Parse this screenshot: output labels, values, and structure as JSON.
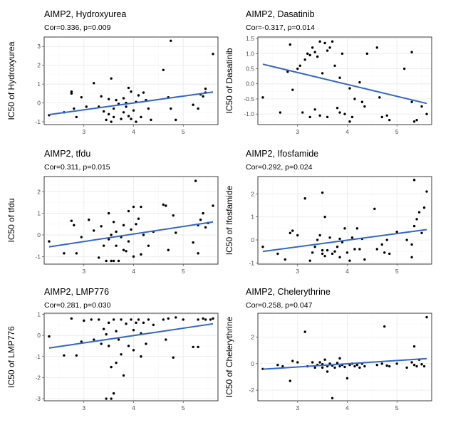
{
  "colors": {
    "fit_line": "#3366cc",
    "points": "#000000",
    "grid": "#ebebeb",
    "border": "#333333"
  },
  "chart_data": [
    {
      "type": "scatter",
      "title": "AIMP2, Hydroxyurea",
      "stat": "Cor=0.336, p=0.009",
      "ylabel": "IC50 of Hydroxyurea",
      "xlabel": "",
      "xlim": [
        2.2,
        5.7
      ],
      "ylim": [
        -1.15,
        3.5
      ],
      "xticks": [
        3,
        4,
        5
      ],
      "yticks": [
        -1,
        0,
        1,
        2,
        3
      ],
      "grid": true,
      "fit": {
        "x": [
          2.3,
          5.6
        ],
        "y": [
          -0.62,
          0.58
        ]
      },
      "points": [
        [
          2.3,
          -0.65
        ],
        [
          2.6,
          -0.5
        ],
        [
          2.75,
          0.5
        ],
        [
          2.75,
          0.6
        ],
        [
          2.8,
          -0.3
        ],
        [
          2.85,
          -0.75
        ],
        [
          2.95,
          0.3
        ],
        [
          3.05,
          -0.2
        ],
        [
          3.2,
          1.05
        ],
        [
          3.3,
          -0.2
        ],
        [
          3.35,
          0.35
        ],
        [
          3.4,
          -0.45
        ],
        [
          3.45,
          -0.9
        ],
        [
          3.5,
          -0.6
        ],
        [
          3.5,
          0.2
        ],
        [
          3.55,
          1.3
        ],
        [
          3.55,
          -1.0
        ],
        [
          3.6,
          -0.3
        ],
        [
          3.6,
          -0.75
        ],
        [
          3.65,
          0.15
        ],
        [
          3.7,
          -0.05
        ],
        [
          3.75,
          -0.85
        ],
        [
          3.8,
          -0.5
        ],
        [
          3.8,
          0.25
        ],
        [
          3.85,
          -0.2
        ],
        [
          3.85,
          0.0
        ],
        [
          3.9,
          0.8
        ],
        [
          3.9,
          -0.7
        ],
        [
          3.95,
          0.6
        ],
        [
          3.95,
          -0.85
        ],
        [
          4.0,
          -0.4
        ],
        [
          4.05,
          0.05
        ],
        [
          4.05,
          -1.0
        ],
        [
          4.1,
          0.4
        ],
        [
          4.15,
          -0.75
        ],
        [
          4.2,
          0.55
        ],
        [
          4.25,
          0.15
        ],
        [
          4.3,
          -0.3
        ],
        [
          4.35,
          -0.9
        ],
        [
          4.6,
          1.75
        ],
        [
          4.7,
          0.3
        ],
        [
          4.75,
          3.3
        ],
        [
          4.75,
          -0.3
        ],
        [
          4.85,
          -0.9
        ],
        [
          5.2,
          -0.1
        ],
        [
          5.3,
          -0.3
        ],
        [
          5.35,
          0.45
        ],
        [
          5.4,
          0.35
        ],
        [
          5.45,
          0.55
        ],
        [
          5.45,
          0.75
        ],
        [
          5.6,
          2.6
        ]
      ]
    },
    {
      "type": "scatter",
      "title": "AIMP2, Dasatinib",
      "stat": "Cor=-0.317, p=0.014",
      "ylabel": "IC50 of Dasatinib",
      "xlabel": "",
      "xlim": [
        2.2,
        5.7
      ],
      "ylim": [
        -1.35,
        1.55
      ],
      "xticks": [
        3,
        4,
        5
      ],
      "yticks": [
        -1.0,
        -0.5,
        0.0,
        0.5,
        1.0,
        1.5
      ],
      "grid": true,
      "fit": {
        "x": [
          2.3,
          5.6
        ],
        "y": [
          0.65,
          -0.65
        ]
      },
      "points": [
        [
          2.3,
          -0.45
        ],
        [
          2.65,
          -0.95
        ],
        [
          2.8,
          0.4
        ],
        [
          2.85,
          1.3
        ],
        [
          2.9,
          -0.2
        ],
        [
          3.0,
          0.5
        ],
        [
          3.05,
          0.6
        ],
        [
          3.1,
          -0.95
        ],
        [
          3.15,
          0.8
        ],
        [
          3.2,
          1.0
        ],
        [
          3.25,
          0.95
        ],
        [
          3.25,
          -1.1
        ],
        [
          3.3,
          1.2
        ],
        [
          3.35,
          1.05
        ],
        [
          3.35,
          -0.85
        ],
        [
          3.4,
          0.9
        ],
        [
          3.45,
          1.4
        ],
        [
          3.45,
          -1.05
        ],
        [
          3.5,
          0.35
        ],
        [
          3.55,
          1.35
        ],
        [
          3.6,
          1.1
        ],
        [
          3.6,
          -1.1
        ],
        [
          3.65,
          1.2
        ],
        [
          3.7,
          1.4
        ],
        [
          3.75,
          0.6
        ],
        [
          3.8,
          -0.8
        ],
        [
          3.85,
          0.2
        ],
        [
          3.85,
          -0.95
        ],
        [
          3.9,
          1.0
        ],
        [
          3.95,
          -1.0
        ],
        [
          4.05,
          -0.15
        ],
        [
          4.05,
          -1.25
        ],
        [
          4.1,
          -1.1
        ],
        [
          4.15,
          -0.5
        ],
        [
          4.25,
          0.05
        ],
        [
          4.3,
          -0.6
        ],
        [
          4.35,
          -0.75
        ],
        [
          4.4,
          1.0
        ],
        [
          4.6,
          1.2
        ],
        [
          4.65,
          -0.45
        ],
        [
          4.7,
          -1.1
        ],
        [
          4.8,
          -1.05
        ],
        [
          4.85,
          -1.2
        ],
        [
          5.15,
          0.5
        ],
        [
          5.3,
          1.05
        ],
        [
          5.3,
          -0.6
        ],
        [
          5.35,
          -1.25
        ],
        [
          5.4,
          -1.2
        ],
        [
          5.5,
          -0.75
        ],
        [
          5.6,
          -1.0
        ]
      ]
    },
    {
      "type": "scatter",
      "title": "AIMP2, tfdu",
      "stat": "Cor=0.311, p=0.015",
      "ylabel": "IC50 of tfdu",
      "xlabel": "",
      "xlim": [
        2.2,
        5.7
      ],
      "ylim": [
        -1.35,
        2.7
      ],
      "xticks": [
        3,
        4,
        5
      ],
      "yticks": [
        -1,
        0,
        1,
        2
      ],
      "grid": true,
      "fit": {
        "x": [
          2.3,
          5.6
        ],
        "y": [
          -0.55,
          0.6
        ]
      },
      "points": [
        [
          2.3,
          -0.3
        ],
        [
          2.6,
          -0.85
        ],
        [
          2.75,
          0.65
        ],
        [
          2.8,
          0.45
        ],
        [
          2.85,
          -0.85
        ],
        [
          2.95,
          -0.1
        ],
        [
          3.1,
          0.7
        ],
        [
          3.2,
          0.2
        ],
        [
          3.3,
          -1.05
        ],
        [
          3.35,
          0.4
        ],
        [
          3.4,
          -0.5
        ],
        [
          3.45,
          -1.2
        ],
        [
          3.5,
          1.0
        ],
        [
          3.5,
          -0.2
        ],
        [
          3.55,
          0.0
        ],
        [
          3.55,
          -1.2
        ],
        [
          3.6,
          0.6
        ],
        [
          3.6,
          -1.2
        ],
        [
          3.65,
          0.15
        ],
        [
          3.65,
          -0.5
        ],
        [
          3.7,
          -1.2
        ],
        [
          3.75,
          -0.1
        ],
        [
          3.8,
          -0.7
        ],
        [
          3.8,
          0.45
        ],
        [
          3.85,
          -0.75
        ],
        [
          3.9,
          1.1
        ],
        [
          3.9,
          -0.3
        ],
        [
          3.95,
          0.25
        ],
        [
          4.0,
          1.3
        ],
        [
          4.0,
          -1.0
        ],
        [
          4.05,
          0.5
        ],
        [
          4.1,
          0.75
        ],
        [
          4.15,
          1.3
        ],
        [
          4.15,
          -0.9
        ],
        [
          4.2,
          0.0
        ],
        [
          4.3,
          -0.5
        ],
        [
          4.4,
          0.15
        ],
        [
          4.6,
          1.4
        ],
        [
          4.65,
          1.35
        ],
        [
          4.7,
          -0.7
        ],
        [
          4.8,
          0.9
        ],
        [
          4.85,
          0.1
        ],
        [
          5.2,
          -0.35
        ],
        [
          5.25,
          2.5
        ],
        [
          5.3,
          -0.85
        ],
        [
          5.3,
          0.45
        ],
        [
          5.35,
          0.7
        ],
        [
          5.4,
          1.0
        ],
        [
          5.45,
          0.35
        ],
        [
          5.5,
          0.55
        ],
        [
          5.6,
          1.35
        ]
      ]
    },
    {
      "type": "scatter",
      "title": "AIMP2, Ifosfamide",
      "stat": "Cor=0.292, p=0.024",
      "ylabel": "IC50 of Ifosfamide",
      "xlabel": "",
      "xlim": [
        2.2,
        5.7
      ],
      "ylim": [
        -1.05,
        2.75
      ],
      "xticks": [
        3,
        4,
        5
      ],
      "yticks": [
        -1,
        0,
        1,
        2
      ],
      "grid": true,
      "fit": {
        "x": [
          2.3,
          5.6
        ],
        "y": [
          -0.5,
          0.45
        ]
      },
      "points": [
        [
          2.3,
          -0.3
        ],
        [
          2.6,
          -0.6
        ],
        [
          2.75,
          -0.85
        ],
        [
          2.85,
          0.3
        ],
        [
          2.9,
          0.4
        ],
        [
          3.0,
          0.2
        ],
        [
          3.15,
          1.8
        ],
        [
          3.25,
          -0.9
        ],
        [
          3.3,
          -0.55
        ],
        [
          3.35,
          -0.3
        ],
        [
          3.4,
          0.0
        ],
        [
          3.45,
          0.2
        ],
        [
          3.5,
          -0.6
        ],
        [
          3.5,
          -0.45
        ],
        [
          3.5,
          2.05
        ],
        [
          3.55,
          1.0
        ],
        [
          3.55,
          -0.7
        ],
        [
          3.6,
          -0.45
        ],
        [
          3.65,
          0.1
        ],
        [
          3.7,
          -0.6
        ],
        [
          3.75,
          -0.5
        ],
        [
          3.8,
          -0.3
        ],
        [
          3.85,
          -0.75
        ],
        [
          3.85,
          0.05
        ],
        [
          3.9,
          -0.1
        ],
        [
          3.95,
          0.5
        ],
        [
          4.0,
          -0.55
        ],
        [
          4.05,
          -0.9
        ],
        [
          4.1,
          0.1
        ],
        [
          4.15,
          -0.4
        ],
        [
          4.2,
          0.5
        ],
        [
          4.25,
          -0.4
        ],
        [
          4.3,
          0.05
        ],
        [
          4.35,
          -0.85
        ],
        [
          4.55,
          1.35
        ],
        [
          4.6,
          -0.4
        ],
        [
          4.7,
          -0.2
        ],
        [
          4.75,
          -0.55
        ],
        [
          4.8,
          0.0
        ],
        [
          4.85,
          -0.6
        ],
        [
          5.0,
          0.35
        ],
        [
          5.2,
          0.0
        ],
        [
          5.3,
          -0.75
        ],
        [
          5.3,
          -0.2
        ],
        [
          5.35,
          0.6
        ],
        [
          5.35,
          2.6
        ],
        [
          5.4,
          0.9
        ],
        [
          5.45,
          1.2
        ],
        [
          5.5,
          0.3
        ],
        [
          5.55,
          1.4
        ],
        [
          5.6,
          2.1
        ]
      ]
    },
    {
      "type": "scatter",
      "title": "AIMP2, LMP776",
      "stat": "Cor=0.281, p=0.030",
      "ylabel": "IC50 of LMP776",
      "xlabel": "",
      "xlim": [
        2.2,
        5.7
      ],
      "ylim": [
        -3.1,
        1.05
      ],
      "xticks": [
        3,
        4,
        5
      ],
      "yticks": [
        -3,
        -2,
        -1,
        0,
        1
      ],
      "grid": true,
      "fit": {
        "x": [
          2.3,
          5.6
        ],
        "y": [
          -0.6,
          0.55
        ]
      },
      "points": [
        [
          2.3,
          -0.05
        ],
        [
          2.6,
          -0.95
        ],
        [
          2.75,
          0.8
        ],
        [
          2.85,
          -0.95
        ],
        [
          2.95,
          -0.3
        ],
        [
          3.0,
          0.7
        ],
        [
          3.15,
          0.75
        ],
        [
          3.2,
          -0.2
        ],
        [
          3.3,
          0.75
        ],
        [
          3.35,
          -0.4
        ],
        [
          3.4,
          0.3
        ],
        [
          3.45,
          0.05
        ],
        [
          3.45,
          -3.0
        ],
        [
          3.5,
          0.6
        ],
        [
          3.5,
          -0.5
        ],
        [
          3.55,
          -1.5
        ],
        [
          3.55,
          -3.0
        ],
        [
          3.6,
          0.75
        ],
        [
          3.6,
          -2.75
        ],
        [
          3.65,
          0.2
        ],
        [
          3.65,
          -1.3
        ],
        [
          3.7,
          -0.2
        ],
        [
          3.75,
          0.75
        ],
        [
          3.75,
          -0.9
        ],
        [
          3.8,
          -1.9
        ],
        [
          3.85,
          0.55
        ],
        [
          3.9,
          -0.5
        ],
        [
          3.95,
          0.75
        ],
        [
          4.0,
          0.25
        ],
        [
          4.0,
          -0.7
        ],
        [
          4.05,
          0.6
        ],
        [
          4.1,
          0.75
        ],
        [
          4.15,
          0.1
        ],
        [
          4.15,
          -1.0
        ],
        [
          4.2,
          0.6
        ],
        [
          4.25,
          -0.4
        ],
        [
          4.3,
          0.75
        ],
        [
          4.4,
          0.5
        ],
        [
          4.6,
          0.75
        ],
        [
          4.65,
          -0.2
        ],
        [
          4.7,
          0.8
        ],
        [
          4.8,
          -1.05
        ],
        [
          4.85,
          0.85
        ],
        [
          5.0,
          0.75
        ],
        [
          5.2,
          -0.55
        ],
        [
          5.3,
          -0.55
        ],
        [
          5.3,
          0.75
        ],
        [
          5.4,
          0.8
        ],
        [
          5.45,
          0.75
        ],
        [
          5.55,
          0.75
        ],
        [
          5.6,
          0.8
        ]
      ]
    },
    {
      "type": "scatter",
      "title": "AIMP2, Chelerythrine",
      "stat": "Cor=0.258, p=0.047",
      "ylabel": "IC50 of Chelerythrine",
      "xlabel": "",
      "xlim": [
        2.2,
        5.7
      ],
      "ylim": [
        -2.8,
        3.8
      ],
      "xticks": [
        3,
        4,
        5
      ],
      "yticks": [
        -2,
        0,
        2
      ],
      "grid": true,
      "fit": {
        "x": [
          2.3,
          5.6
        ],
        "y": [
          -0.42,
          0.38
        ]
      },
      "points": [
        [
          2.3,
          -0.4
        ],
        [
          2.6,
          -0.1
        ],
        [
          2.7,
          -0.2
        ],
        [
          2.85,
          -1.3
        ],
        [
          2.9,
          0.2
        ],
        [
          3.0,
          0.1
        ],
        [
          3.15,
          2.4
        ],
        [
          3.2,
          -0.2
        ],
        [
          3.3,
          0.1
        ],
        [
          3.35,
          -0.3
        ],
        [
          3.4,
          -0.1
        ],
        [
          3.45,
          0.1
        ],
        [
          3.5,
          -0.3
        ],
        [
          3.5,
          -0.05
        ],
        [
          3.55,
          0.3
        ],
        [
          3.6,
          -0.2
        ],
        [
          3.6,
          -0.6
        ],
        [
          3.65,
          0.0
        ],
        [
          3.7,
          -0.15
        ],
        [
          3.7,
          -2.6
        ],
        [
          3.75,
          -0.3
        ],
        [
          3.8,
          0.05
        ],
        [
          3.85,
          -0.2
        ],
        [
          3.85,
          0.4
        ],
        [
          3.9,
          -0.1
        ],
        [
          3.95,
          -0.25
        ],
        [
          4.0,
          -1.1
        ],
        [
          4.05,
          -0.1
        ],
        [
          4.1,
          0.0
        ],
        [
          4.15,
          -0.2
        ],
        [
          4.2,
          -0.1
        ],
        [
          4.25,
          -0.3
        ],
        [
          4.3,
          0.0
        ],
        [
          4.35,
          -0.2
        ],
        [
          4.6,
          -0.1
        ],
        [
          4.7,
          0.0
        ],
        [
          4.75,
          2.8
        ],
        [
          4.8,
          -0.15
        ],
        [
          4.85,
          -0.2
        ],
        [
          5.0,
          0.0
        ],
        [
          5.2,
          -0.3
        ],
        [
          5.3,
          0.1
        ],
        [
          5.35,
          1.3
        ],
        [
          5.35,
          -0.1
        ],
        [
          5.4,
          -0.2
        ],
        [
          5.45,
          0.3
        ],
        [
          5.5,
          -0.05
        ],
        [
          5.55,
          -0.2
        ],
        [
          5.6,
          3.5
        ]
      ]
    }
  ]
}
